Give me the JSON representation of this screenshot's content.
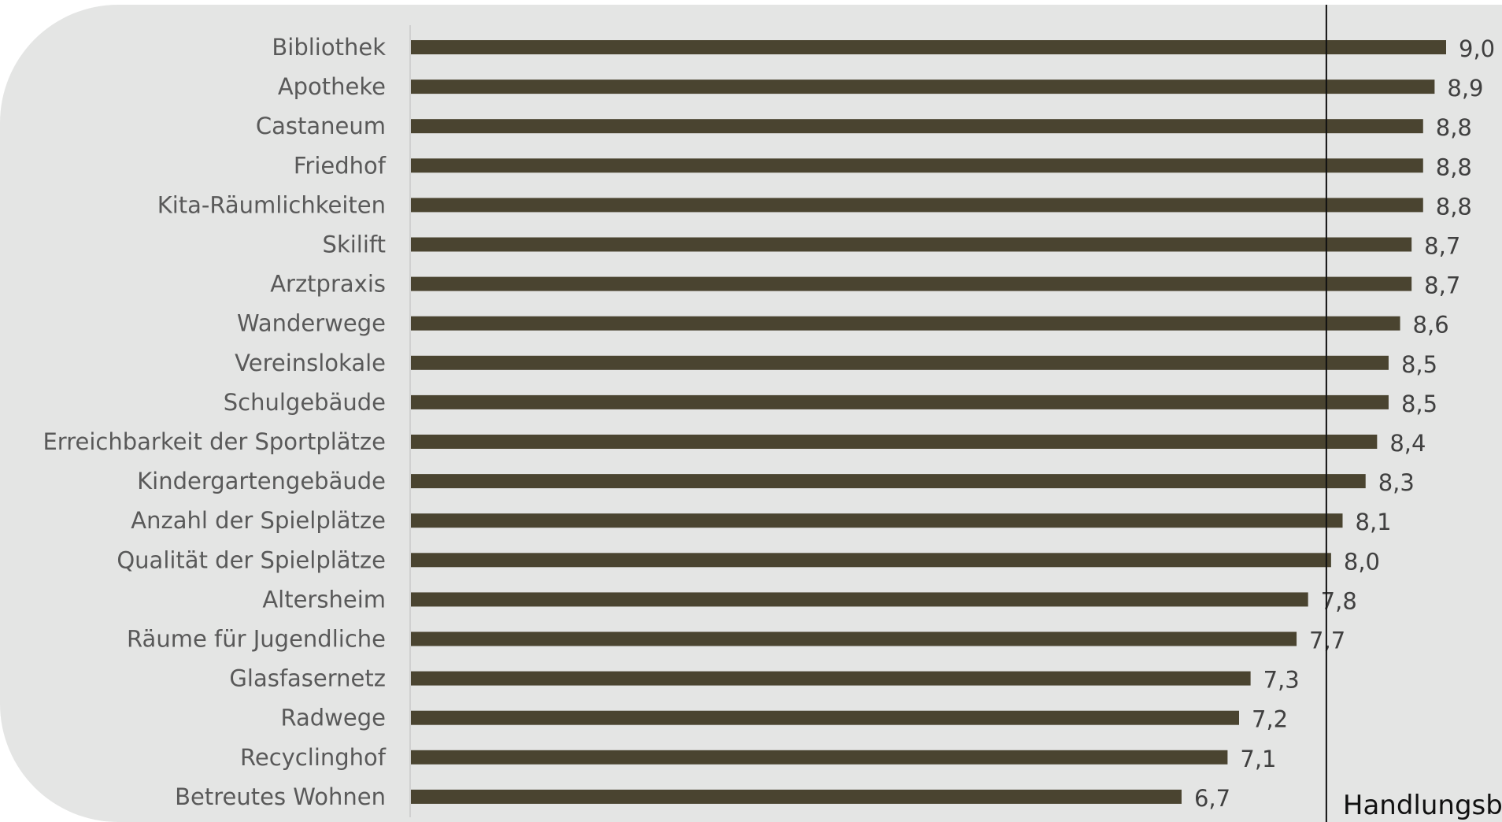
{
  "chart_data": {
    "type": "bar",
    "orientation": "horizontal",
    "categories": [
      "Bibliothek",
      "Apotheke",
      "Castaneum",
      "Friedhof",
      "Kita-Räumlichkeiten",
      "Skilift",
      "Arztpraxis",
      "Wanderwege",
      "Vereinslokale",
      "Schulgebäude",
      "Erreichbarkeit der Sportplätze",
      "Kindergartengebäude",
      "Anzahl der Spielplätze",
      "Qualität der Spielplätze",
      "Altersheim",
      "Räume für Jugendliche",
      "Glasfasernetz",
      "Radwege",
      "Recyclinghof",
      "Betreutes Wohnen"
    ],
    "values": [
      9.0,
      8.9,
      8.8,
      8.8,
      8.8,
      8.7,
      8.7,
      8.6,
      8.5,
      8.5,
      8.4,
      8.3,
      8.1,
      8.0,
      7.8,
      7.7,
      7.3,
      7.2,
      7.1,
      6.7
    ],
    "value_labels": [
      "9,0",
      "8,9",
      "8,8",
      "8,8",
      "8,8",
      "8,7",
      "8,7",
      "8,6",
      "8,5",
      "8,5",
      "8,4",
      "8,3",
      "8,1",
      "8,0",
      "7,8",
      "7,7",
      "7,3",
      "7,2",
      "7,1",
      "6,7"
    ],
    "reference_line": {
      "value": 8.0,
      "label": "Handlungsbedarf"
    },
    "bar_color": "#4a4430",
    "grid": false,
    "legend": "none"
  }
}
